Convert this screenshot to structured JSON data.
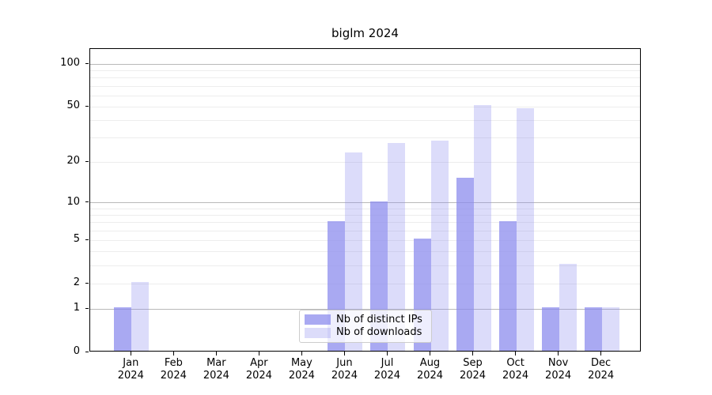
{
  "chart_data": {
    "type": "bar",
    "title": "biglm 2024",
    "categories": [
      "Jan 2024",
      "Feb 2024",
      "Mar 2024",
      "Apr 2024",
      "May 2024",
      "Jun 2024",
      "Jul 2024",
      "Aug 2024",
      "Sep 2024",
      "Oct 2024",
      "Nov 2024",
      "Dec 2024"
    ],
    "series": [
      {
        "name": "Nb of distinct IPs",
        "color": "#8c8cee",
        "alpha": 0.75,
        "values": [
          1,
          0,
          0,
          0,
          0,
          7,
          10,
          5,
          15,
          7,
          1,
          1
        ]
      },
      {
        "name": "Nb of downloads",
        "color": "#8c8cee",
        "alpha": 0.3,
        "values": [
          2,
          0,
          0,
          0,
          0,
          23,
          27,
          28,
          50,
          48,
          3,
          1
        ]
      }
    ],
    "xlabel": "",
    "ylabel": "",
    "y_scale": "log1p",
    "ylim": [
      0,
      128
    ],
    "y_ticks": [
      0,
      1,
      2,
      5,
      10,
      20,
      50,
      100
    ],
    "major_gridlines": [
      1,
      10,
      100
    ],
    "minor_gridlines": [
      2,
      3,
      4,
      5,
      6,
      7,
      8,
      9,
      20,
      30,
      40,
      50,
      60,
      70,
      80,
      90
    ],
    "grid": true,
    "legend_position": "lower center",
    "colors": {
      "bar_ips": "rgba(140,140,238,0.75)",
      "bar_downloads": "rgba(140,140,238,0.30)",
      "major_grid": "#b9b9b9",
      "minor_grid": "#ededed",
      "spine": "#000000"
    }
  }
}
